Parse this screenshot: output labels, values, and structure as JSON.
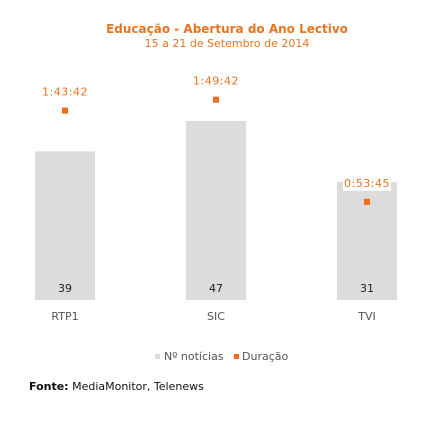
{
  "chart_data": {
    "type": "bar",
    "title": "Educação - Abertura do Ano Lectivo",
    "subtitle": "15 a 21 de Setembro de 2014",
    "categories": [
      "RTP1",
      "SIC",
      "TVI"
    ],
    "series": [
      {
        "name": "Nº notícias",
        "type": "bar",
        "values": [
          39,
          47,
          31
        ]
      },
      {
        "name": "Duração",
        "type": "scatter",
        "values": [
          "1:43:42",
          "1:49:42",
          "0:53:45"
        ],
        "minutes": [
          103.7,
          109.7,
          53.75
        ]
      }
    ],
    "ylim_count": [
      0,
      58
    ],
    "ylim_duration_minutes": [
      0,
      121
    ],
    "legend": "bottom-center",
    "grid": false,
    "colors": {
      "bars": "#dcdcdc",
      "duration": "#f26a1b",
      "title": "#e8741e"
    }
  },
  "source": {
    "label": "Fonte:",
    "text": "MediaMonitor, Telenews"
  }
}
